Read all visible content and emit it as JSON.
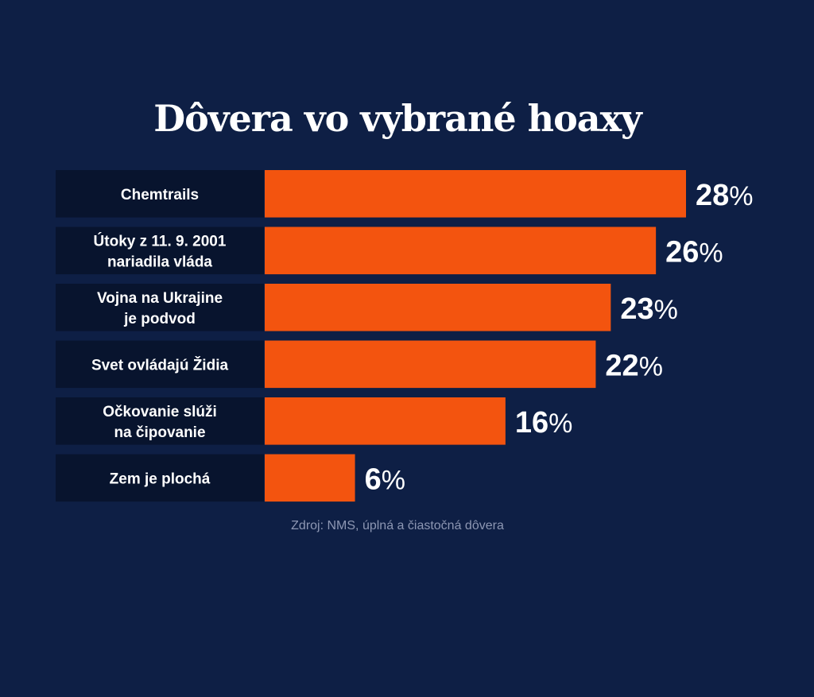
{
  "chart_data": {
    "type": "bar",
    "title": "Dôvera vo vybrané hoaxy",
    "orientation": "horizontal",
    "categories": [
      [
        "Chemtrails"
      ],
      [
        "Útoky z 11. 9. 2001",
        "nariadila vláda"
      ],
      [
        "Vojna na Ukrajine",
        "je podvod"
      ],
      [
        "Svet ovládajú Židia"
      ],
      [
        "Očkovanie slúži",
        "na čipovanie"
      ],
      [
        "Zem je plochá"
      ]
    ],
    "values": [
      28,
      26,
      23,
      22,
      16,
      6
    ],
    "value_labels": [
      "28%",
      "26%",
      "23%",
      "22%",
      "16%",
      "6%"
    ],
    "unit": "%",
    "source": "Zdroj: NMS, úplná a čiastočná dôvera",
    "colors": {
      "background": "#0e1f45",
      "bar": "#f3540f",
      "label_box": "#08142e",
      "text": "#ffffff",
      "source_text": "#8d97b3"
    }
  }
}
